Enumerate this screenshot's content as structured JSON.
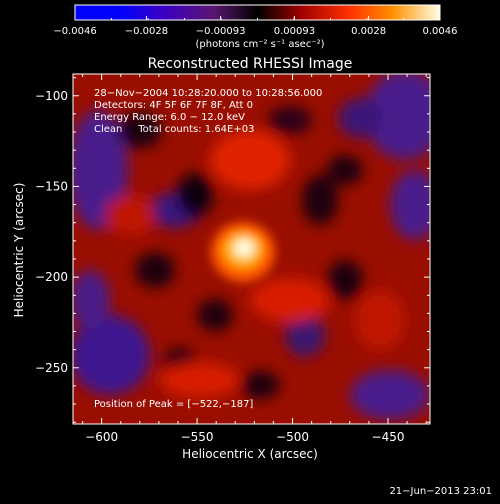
{
  "chart_data": {
    "type": "heatmap",
    "title": "Reconstructed RHESSI Image",
    "xlabel": "Heliocentric X (arcsec)",
    "ylabel": "Heliocentric Y (arcsec)",
    "xlim": [
      -615,
      -428
    ],
    "ylim": [
      -281,
      -88
    ],
    "xticks": [
      -600,
      -550,
      -500,
      -450
    ],
    "xtick_labels": [
      "−600",
      "−550",
      "−500",
      "−450"
    ],
    "yticks": [
      -100,
      -150,
      -200,
      -250
    ],
    "ytick_labels": [
      "−100",
      "−150",
      "−200",
      "−250"
    ],
    "colorbar": {
      "range": [
        -0.0046,
        0.0046
      ],
      "ticks": [
        -0.0046,
        -0.0028,
        -0.00093,
        0.00093,
        0.0028,
        0.0046
      ],
      "tick_labels": [
        "−0.0046",
        "−0.0028",
        "−0.00093",
        "0.00093",
        "0.0028",
        "0.0046"
      ],
      "unit": "(photons cm⁻² s⁻¹ asec⁻²)"
    },
    "annotations": {
      "time_range": "28−Nov−2004 10:28:20.000 to 10:28:56.000",
      "detectors": "Detectors: 4F 5F 6F 7F 8F, Att 0",
      "energy": "Energy Range: 6.0 − 12.0 keV",
      "algorithm": "Clean     Total counts: 1.64E+03",
      "peak": "Position of Peak = [−522,−187]"
    },
    "peak_position": [
      -522,
      -187
    ],
    "peak_value": 0.0046
  },
  "footer": {
    "timestamp": "21−Jun−2013 23:01"
  },
  "colors": {
    "background": "#000000",
    "colormap_low": "#0000ff",
    "colormap_high": "#ffffe6"
  }
}
